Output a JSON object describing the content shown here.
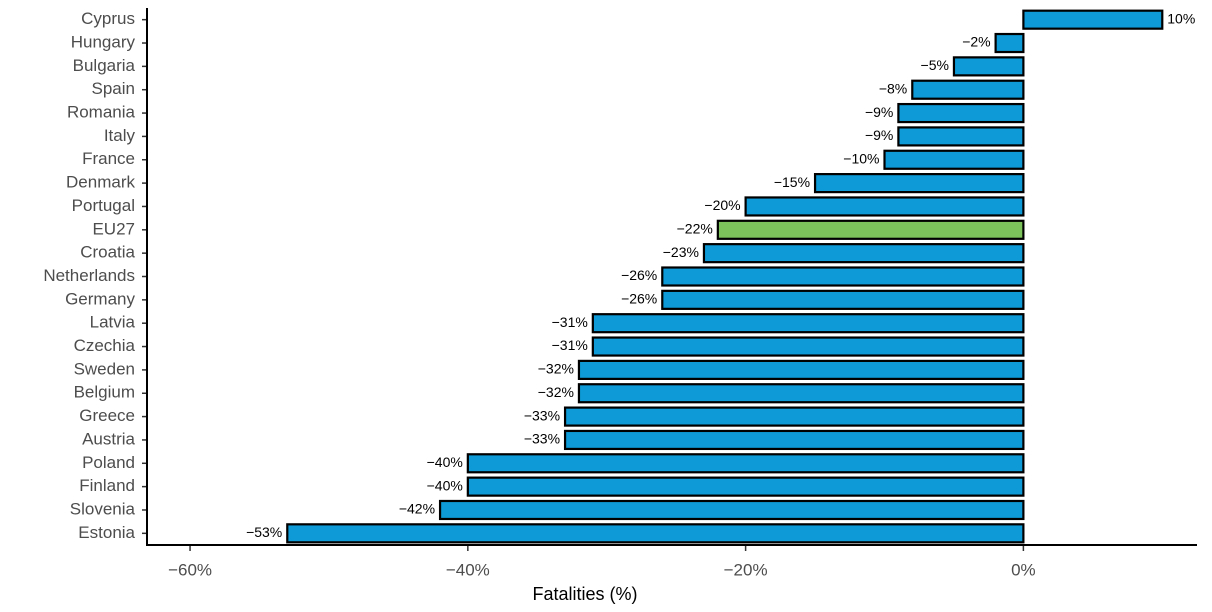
{
  "chart_data": {
    "type": "bar",
    "orientation": "horizontal",
    "x_label": "Fatalities (%)",
    "categories": [
      "Cyprus",
      "Hungary",
      "Bulgaria",
      "Spain",
      "Romania",
      "Italy",
      "France",
      "Denmark",
      "Portugal",
      "EU27",
      "Croatia",
      "Netherlands",
      "Germany",
      "Latvia",
      "Czechia",
      "Sweden",
      "Belgium",
      "Greece",
      "Austria",
      "Poland",
      "Finland",
      "Slovenia",
      "Estonia"
    ],
    "values": [
      10,
      -2,
      -5,
      -8,
      -9,
      -9,
      -10,
      -15,
      -20,
      -22,
      -23,
      -26,
      -26,
      -31,
      -31,
      -32,
      -32,
      -33,
      -33,
      -40,
      -40,
      -42,
      -53
    ],
    "value_labels": [
      "10%",
      "−2%",
      "−5%",
      "−8%",
      "−9%",
      "−9%",
      "−10%",
      "−15%",
      "−20%",
      "−22%",
      "−23%",
      "−26%",
      "−26%",
      "−31%",
      "−31%",
      "−32%",
      "−32%",
      "−33%",
      "−33%",
      "−40%",
      "−40%",
      "−42%",
      "−53%"
    ],
    "colors": [
      "#0d9ad6",
      "#0d9ad6",
      "#0d9ad6",
      "#0d9ad6",
      "#0d9ad6",
      "#0d9ad6",
      "#0d9ad6",
      "#0d9ad6",
      "#0d9ad6",
      "#7cc35c",
      "#0d9ad6",
      "#0d9ad6",
      "#0d9ad6",
      "#0d9ad6",
      "#0d9ad6",
      "#0d9ad6",
      "#0d9ad6",
      "#0d9ad6",
      "#0d9ad6",
      "#0d9ad6",
      "#0d9ad6",
      "#0d9ad6",
      "#0d9ad6"
    ],
    "xlim": [
      -63.1,
      12.5
    ],
    "xticks": [
      {
        "value": -60,
        "label": "−60%"
      },
      {
        "value": -40,
        "label": "−40%"
      },
      {
        "value": -20,
        "label": "−20%"
      },
      {
        "value": 0,
        "label": "0%"
      }
    ]
  }
}
